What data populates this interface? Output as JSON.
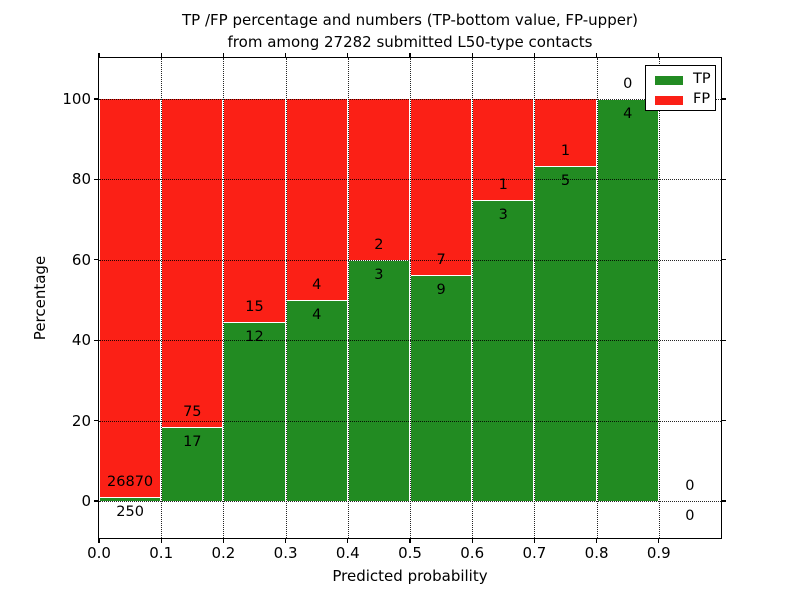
{
  "title": {
    "line1": "TP /FP percentage and numbers (TP-bottom value, FP-upper)",
    "line2": "from among 27282 submitted L50-type contacts"
  },
  "axes": {
    "xlabel": "Predicted probability",
    "ylabel": "Percentage",
    "x_ticks": [
      "0.0",
      "0.1",
      "0.2",
      "0.3",
      "0.4",
      "0.5",
      "0.6",
      "0.7",
      "0.8",
      "0.9"
    ],
    "x_tick_values": [
      0.0,
      0.1,
      0.2,
      0.3,
      0.4,
      0.5,
      0.6,
      0.7,
      0.8,
      0.9
    ],
    "y_ticks": [
      "0",
      "20",
      "40",
      "60",
      "80",
      "100"
    ],
    "y_tick_values": [
      0,
      20,
      40,
      60,
      80,
      100
    ]
  },
  "legend": {
    "items": [
      {
        "label": "TP",
        "color": "#228b22"
      },
      {
        "label": "FP",
        "color": "#fb2016"
      }
    ]
  },
  "colors": {
    "tp": "#228b22",
    "fp": "#fb2016",
    "background": "#ffffff",
    "grid": "#000000",
    "frame": "#000000"
  },
  "chart_data": {
    "type": "bar",
    "stacked": true,
    "normalized": "percent-of-bin-total",
    "title": "TP /FP percentage and numbers (TP-bottom value, FP-upper) from among 27282 submitted L50-type contacts",
    "xlabel": "Predicted probability",
    "ylabel": "Percentage",
    "xlim": [
      0.0,
      1.0
    ],
    "ylim": [
      -9,
      110
    ],
    "grid": true,
    "grid_style": "dotted",
    "legend_position": "upper right",
    "total_submitted": 27282,
    "bin_edges": [
      0.0,
      0.1,
      0.2,
      0.3,
      0.4,
      0.5,
      0.6,
      0.7,
      0.8,
      0.9,
      1.0
    ],
    "categories": [
      "0.0-0.1",
      "0.1-0.2",
      "0.2-0.3",
      "0.3-0.4",
      "0.4-0.5",
      "0.5-0.6",
      "0.6-0.7",
      "0.7-0.8",
      "0.8-0.9",
      "0.9-1.0"
    ],
    "series": [
      {
        "name": "TP",
        "color": "#228b22",
        "counts": [
          250,
          17,
          12,
          4,
          3,
          9,
          3,
          5,
          4,
          0
        ]
      },
      {
        "name": "FP",
        "color": "#fb2016",
        "counts": [
          26870,
          75,
          15,
          4,
          2,
          7,
          1,
          1,
          0,
          0
        ]
      }
    ],
    "tp_percent": [
      0.92,
      18.48,
      44.44,
      50.0,
      60.0,
      56.25,
      75.0,
      83.33,
      100.0,
      null
    ]
  }
}
